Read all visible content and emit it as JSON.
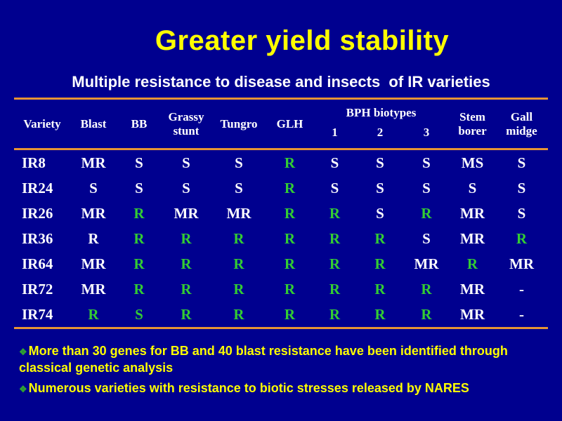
{
  "slide": {
    "title": "Greater yield stability",
    "subtitle": "Multiple resistance to disease and insects  of IR varieties"
  },
  "table": {
    "group_header": "BPH biotypes",
    "columns": [
      "Variety",
      "Blast",
      "BB",
      "Grassy stunt",
      "Tungro",
      "GLH",
      "1",
      "2",
      "3",
      "Stem borer",
      "Gall midge"
    ],
    "rows": [
      {
        "variety": "IR8",
        "cells": [
          {
            "v": "MR",
            "c": "white"
          },
          {
            "v": "S",
            "c": "white"
          },
          {
            "v": "S",
            "c": "white"
          },
          {
            "v": "S",
            "c": "white"
          },
          {
            "v": "R",
            "c": "green"
          },
          {
            "v": "S",
            "c": "white"
          },
          {
            "v": "S",
            "c": "white"
          },
          {
            "v": "S",
            "c": "white"
          },
          {
            "v": "MS",
            "c": "white"
          },
          {
            "v": "S",
            "c": "white"
          }
        ]
      },
      {
        "variety": "IR24",
        "cells": [
          {
            "v": "S",
            "c": "white"
          },
          {
            "v": "S",
            "c": "white"
          },
          {
            "v": "S",
            "c": "white"
          },
          {
            "v": "S",
            "c": "white"
          },
          {
            "v": "R",
            "c": "green"
          },
          {
            "v": "S",
            "c": "white"
          },
          {
            "v": "S",
            "c": "white"
          },
          {
            "v": "S",
            "c": "white"
          },
          {
            "v": "S",
            "c": "white"
          },
          {
            "v": "S",
            "c": "white"
          }
        ]
      },
      {
        "variety": "IR26",
        "cells": [
          {
            "v": "MR",
            "c": "white"
          },
          {
            "v": "R",
            "c": "green"
          },
          {
            "v": "MR",
            "c": "white"
          },
          {
            "v": "MR",
            "c": "white"
          },
          {
            "v": "R",
            "c": "green"
          },
          {
            "v": "R",
            "c": "green"
          },
          {
            "v": "S",
            "c": "white"
          },
          {
            "v": "R",
            "c": "green"
          },
          {
            "v": "MR",
            "c": "white"
          },
          {
            "v": "S",
            "c": "white"
          }
        ]
      },
      {
        "variety": "IR36",
        "cells": [
          {
            "v": "R",
            "c": "white"
          },
          {
            "v": "R",
            "c": "green"
          },
          {
            "v": "R",
            "c": "green"
          },
          {
            "v": "R",
            "c": "green"
          },
          {
            "v": "R",
            "c": "green"
          },
          {
            "v": "R",
            "c": "green"
          },
          {
            "v": "R",
            "c": "green"
          },
          {
            "v": "S",
            "c": "white"
          },
          {
            "v": "MR",
            "c": "white"
          },
          {
            "v": "R",
            "c": "green"
          }
        ]
      },
      {
        "variety": "IR64",
        "cells": [
          {
            "v": "MR",
            "c": "white"
          },
          {
            "v": "R",
            "c": "green"
          },
          {
            "v": "R",
            "c": "green"
          },
          {
            "v": "R",
            "c": "green"
          },
          {
            "v": "R",
            "c": "green"
          },
          {
            "v": "R",
            "c": "green"
          },
          {
            "v": "R",
            "c": "green"
          },
          {
            "v": "MR",
            "c": "white"
          },
          {
            "v": "R",
            "c": "green"
          },
          {
            "v": "MR",
            "c": "white"
          }
        ]
      },
      {
        "variety": "IR72",
        "cells": [
          {
            "v": "MR",
            "c": "white"
          },
          {
            "v": "R",
            "c": "green"
          },
          {
            "v": "R",
            "c": "green"
          },
          {
            "v": "R",
            "c": "green"
          },
          {
            "v": "R",
            "c": "green"
          },
          {
            "v": "R",
            "c": "green"
          },
          {
            "v": "R",
            "c": "green"
          },
          {
            "v": "R",
            "c": "green"
          },
          {
            "v": "MR",
            "c": "white"
          },
          {
            "v": "-",
            "c": "white"
          }
        ]
      },
      {
        "variety": "IR74",
        "cells": [
          {
            "v": "R",
            "c": "green"
          },
          {
            "v": "S",
            "c": "green"
          },
          {
            "v": "R",
            "c": "green"
          },
          {
            "v": "R",
            "c": "green"
          },
          {
            "v": "R",
            "c": "green"
          },
          {
            "v": "R",
            "c": "green"
          },
          {
            "v": "R",
            "c": "green"
          },
          {
            "v": "R",
            "c": "green"
          },
          {
            "v": "MR",
            "c": "white"
          },
          {
            "v": "-",
            "c": "white"
          }
        ]
      }
    ]
  },
  "bullets": {
    "marker_glyph": "❖",
    "items": [
      "More than 30 genes for BB and 40 blast resistance have been identified through classical genetic analysis",
      "Numerous varieties with resistance to biotic stresses released by NARES"
    ]
  },
  "colors": {
    "background": "#00008F",
    "title_yellow": "#FFFF00",
    "text_white": "#FFFFFF",
    "resistant_green": "#33CC33",
    "rule_orange": "#E69435",
    "bullet_marker_green": "#2FA52F"
  }
}
